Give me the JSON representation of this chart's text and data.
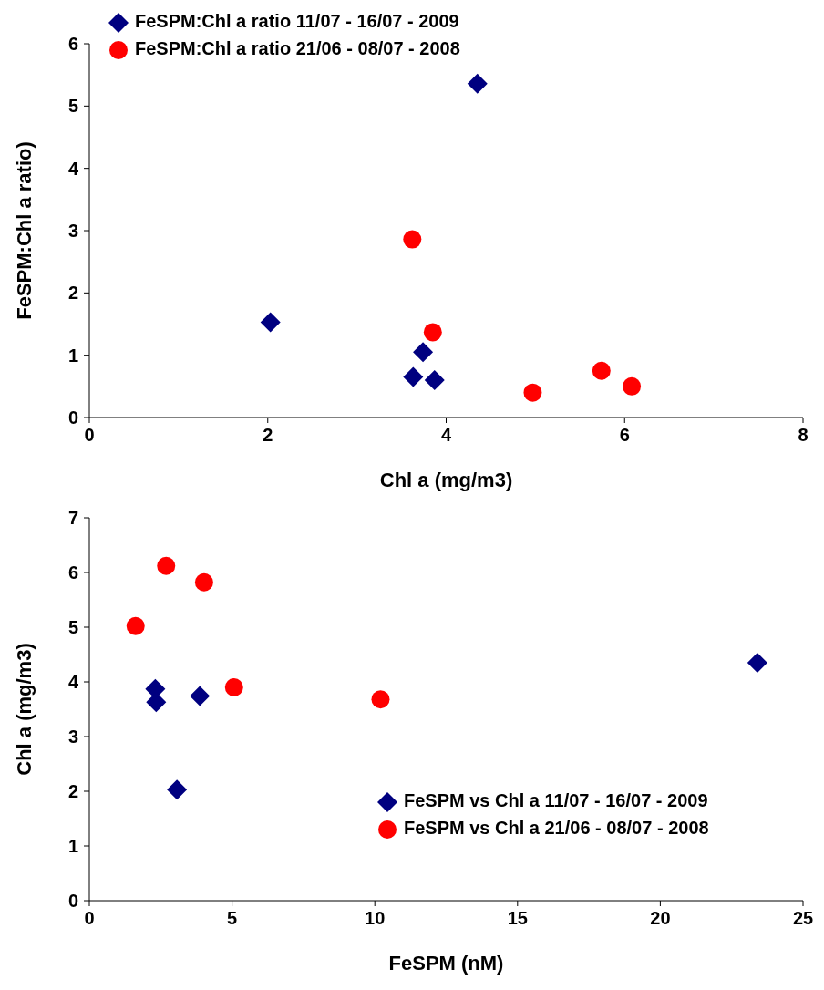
{
  "chart_data": [
    {
      "type": "scatter",
      "xlabel": "Chl a (mg/m3)",
      "ylabel": "FeSPM:Chl a ratio)",
      "xlim": [
        0,
        8
      ],
      "xticks": [
        0,
        2,
        4,
        6,
        8
      ],
      "ylim": [
        0,
        6
      ],
      "yticks": [
        0,
        1,
        2,
        3,
        4,
        5,
        6
      ],
      "grid": false,
      "legend": "top left",
      "series": [
        {
          "name": "FeSPM:Chl a ratio 11/07 - 16/07 - 2009",
          "color": "#000080",
          "marker": "diamond",
          "x": [
            2.03,
            3.74,
            3.63,
            3.87,
            4.35
          ],
          "values": [
            1.53,
            1.05,
            0.65,
            0.6,
            5.36
          ]
        },
        {
          "name": "FeSPM:Chl a ratio 21/06 - 08/07 - 2008",
          "color": "#ff0000",
          "marker": "circle",
          "x": [
            3.62,
            3.85,
            4.97,
            5.74,
            6.08
          ],
          "values": [
            2.86,
            1.37,
            0.4,
            0.75,
            0.5
          ]
        }
      ]
    },
    {
      "type": "scatter",
      "xlabel": "FeSPM (nM)",
      "ylabel": "Chl a (mg/m3)",
      "xlim": [
        0,
        25
      ],
      "xticks": [
        0,
        5,
        10,
        15,
        20,
        25
      ],
      "ylim": [
        0,
        7
      ],
      "yticks": [
        0,
        1,
        2,
        3,
        4,
        5,
        6,
        7
      ],
      "grid": false,
      "legend": "bottom right",
      "series": [
        {
          "name": "FeSPM vs Chl a 11/07 - 16/07 - 2009",
          "color": "#000080",
          "marker": "diamond",
          "x": [
            23.4,
            2.31,
            2.34,
            3.87,
            3.07
          ],
          "values": [
            4.35,
            3.87,
            3.63,
            3.74,
            2.03
          ]
        },
        {
          "name": "FeSPM vs Chl a 21/06 - 08/07 - 2008",
          "color": "#ff0000",
          "marker": "circle",
          "x": [
            1.62,
            2.69,
            4.02,
            5.07,
            10.2
          ],
          "values": [
            5.02,
            6.12,
            5.82,
            3.9,
            3.68
          ]
        }
      ]
    }
  ]
}
